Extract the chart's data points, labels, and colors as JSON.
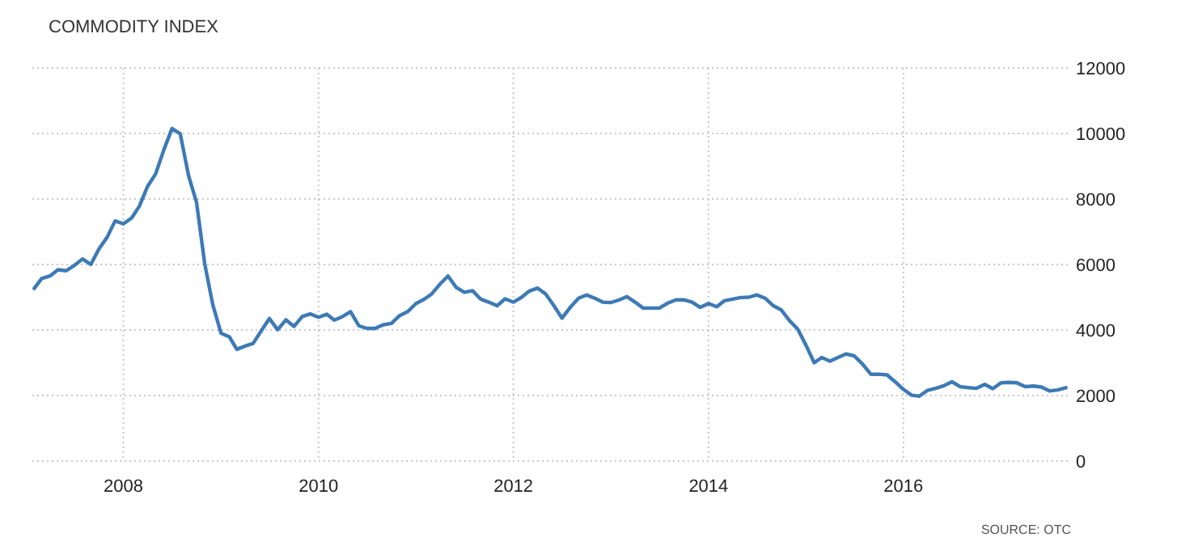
{
  "chart_data": {
    "type": "line",
    "title": "COMMODITY INDEX",
    "annotations": [
      "SOURCE: OTC"
    ],
    "x": [
      "2007-02",
      "2007-03",
      "2007-04",
      "2007-05",
      "2007-06",
      "2007-07",
      "2007-08",
      "2007-09",
      "2007-10",
      "2007-11",
      "2007-12",
      "2008-01",
      "2008-02",
      "2008-03",
      "2008-04",
      "2008-05",
      "2008-06",
      "2008-07",
      "2008-08",
      "2008-09",
      "2008-10",
      "2008-11",
      "2008-12",
      "2009-01",
      "2009-02",
      "2009-03",
      "2009-04",
      "2009-05",
      "2009-06",
      "2009-07",
      "2009-08",
      "2009-09",
      "2009-10",
      "2009-11",
      "2009-12",
      "2010-01",
      "2010-02",
      "2010-03",
      "2010-04",
      "2010-05",
      "2010-06",
      "2010-07",
      "2010-08",
      "2010-09",
      "2010-10",
      "2010-11",
      "2010-12",
      "2011-01",
      "2011-02",
      "2011-03",
      "2011-04",
      "2011-05",
      "2011-06",
      "2011-07",
      "2011-08",
      "2011-09",
      "2011-10",
      "2011-11",
      "2011-12",
      "2012-01",
      "2012-02",
      "2012-03",
      "2012-04",
      "2012-05",
      "2012-06",
      "2012-07",
      "2012-08",
      "2012-09",
      "2012-10",
      "2012-11",
      "2012-12",
      "2013-01",
      "2013-02",
      "2013-03",
      "2013-04",
      "2013-05",
      "2013-06",
      "2013-07",
      "2013-08",
      "2013-09",
      "2013-10",
      "2013-11",
      "2013-12",
      "2014-01",
      "2014-02",
      "2014-03",
      "2014-04",
      "2014-05",
      "2014-06",
      "2014-07",
      "2014-08",
      "2014-09",
      "2014-10",
      "2014-11",
      "2014-12",
      "2015-01",
      "2015-02",
      "2015-03",
      "2015-04",
      "2015-05",
      "2015-06",
      "2015-07",
      "2015-08",
      "2015-09",
      "2015-10",
      "2015-11",
      "2015-12",
      "2016-01",
      "2016-02",
      "2016-03",
      "2016-04",
      "2016-05",
      "2016-06",
      "2016-07",
      "2016-08",
      "2016-09",
      "2016-10",
      "2016-11",
      "2016-12",
      "2017-01",
      "2017-02",
      "2017-03",
      "2017-04",
      "2017-05",
      "2017-06",
      "2017-07",
      "2017-08",
      "2017-09"
    ],
    "series": [
      {
        "color": "#3d7ab5",
        "values": [
          5270,
          5570,
          5650,
          5840,
          5810,
          5970,
          6170,
          6000,
          6470,
          6830,
          7330,
          7240,
          7420,
          7780,
          8390,
          8770,
          9510,
          10150,
          9990,
          8720,
          7900,
          6010,
          4770,
          3900,
          3790,
          3410,
          3510,
          3590,
          3980,
          4350,
          4010,
          4310,
          4110,
          4410,
          4490,
          4390,
          4480,
          4300,
          4410,
          4560,
          4130,
          4050,
          4050,
          4160,
          4200,
          4440,
          4560,
          4810,
          4940,
          5100,
          5400,
          5650,
          5300,
          5150,
          5200,
          4940,
          4850,
          4740,
          4950,
          4850,
          5000,
          5190,
          5280,
          5100,
          4740,
          4360,
          4690,
          4970,
          5070,
          4970,
          4850,
          4840,
          4920,
          5020,
          4850,
          4670,
          4670,
          4670,
          4820,
          4920,
          4920,
          4850,
          4690,
          4810,
          4710,
          4890,
          4940,
          4990,
          5000,
          5070,
          4970,
          4740,
          4610,
          4280,
          4030,
          3540,
          3000,
          3160,
          3050,
          3160,
          3270,
          3210,
          2960,
          2650,
          2650,
          2630,
          2420,
          2190,
          2010,
          1980,
          2160,
          2220,
          2300,
          2420,
          2270,
          2240,
          2220,
          2340,
          2210,
          2390,
          2400,
          2390,
          2270,
          2290,
          2260,
          2140,
          2170,
          2240
        ]
      }
    ],
    "xlim": [
      "2007-01-25",
      "2017-09-20"
    ],
    "xticks": [
      "2008",
      "2010",
      "2012",
      "2014",
      "2016"
    ],
    "ylim": [
      0,
      12000
    ],
    "yticks": [
      0,
      2000,
      4000,
      6000,
      8000,
      10000,
      12000
    ],
    "grid": true,
    "line_style": "solid",
    "marker": "none"
  }
}
